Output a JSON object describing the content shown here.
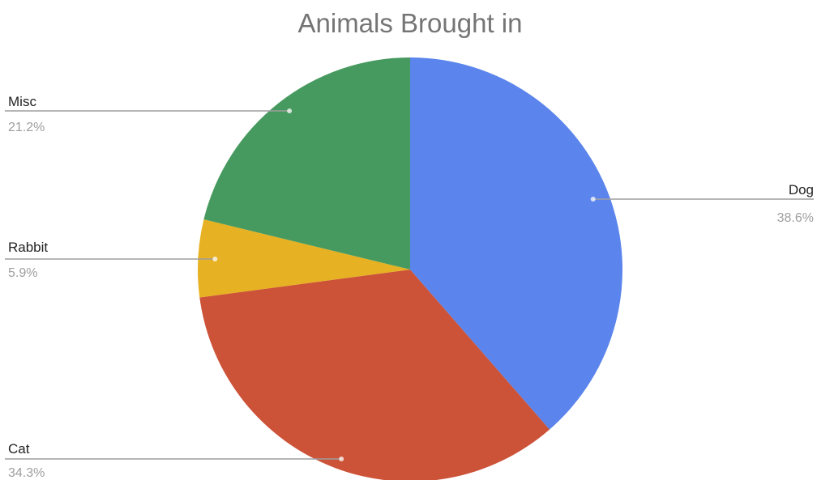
{
  "chart_data": {
    "type": "pie",
    "title": "Animals Brought in",
    "slices": [
      {
        "label": "Dog",
        "value": 38.6,
        "value_label": "38.6%",
        "color": "#5b85ec"
      },
      {
        "label": "Cat",
        "value": 34.3,
        "value_label": "34.3%",
        "color": "#cc5238"
      },
      {
        "label": "Rabbit",
        "value": 5.9,
        "value_label": "5.9%",
        "color": "#e6b122"
      },
      {
        "label": "Misc",
        "value": 21.2,
        "value_label": "21.2%",
        "color": "#479a5f"
      }
    ],
    "legend": "labels on leader lines outside the pie"
  }
}
